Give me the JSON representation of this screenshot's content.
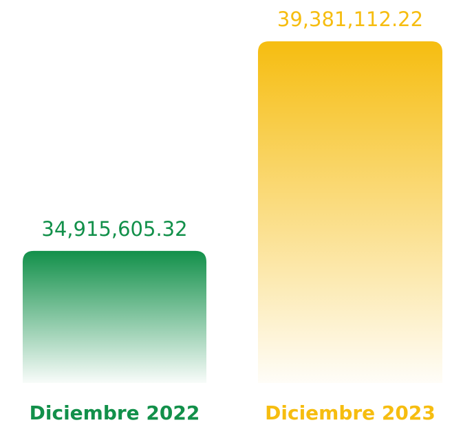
{
  "chart_data": {
    "type": "bar",
    "categories": [
      "Diciembre 2022",
      "Diciembre 2023"
    ],
    "values": [
      34915605.32,
      39381112.22
    ],
    "value_labels": [
      "34,915,605.32",
      "39,381,112.22"
    ],
    "colors": [
      "#12904a",
      "#f6bd10"
    ],
    "ylim": [
      32100000,
      39500000
    ]
  }
}
